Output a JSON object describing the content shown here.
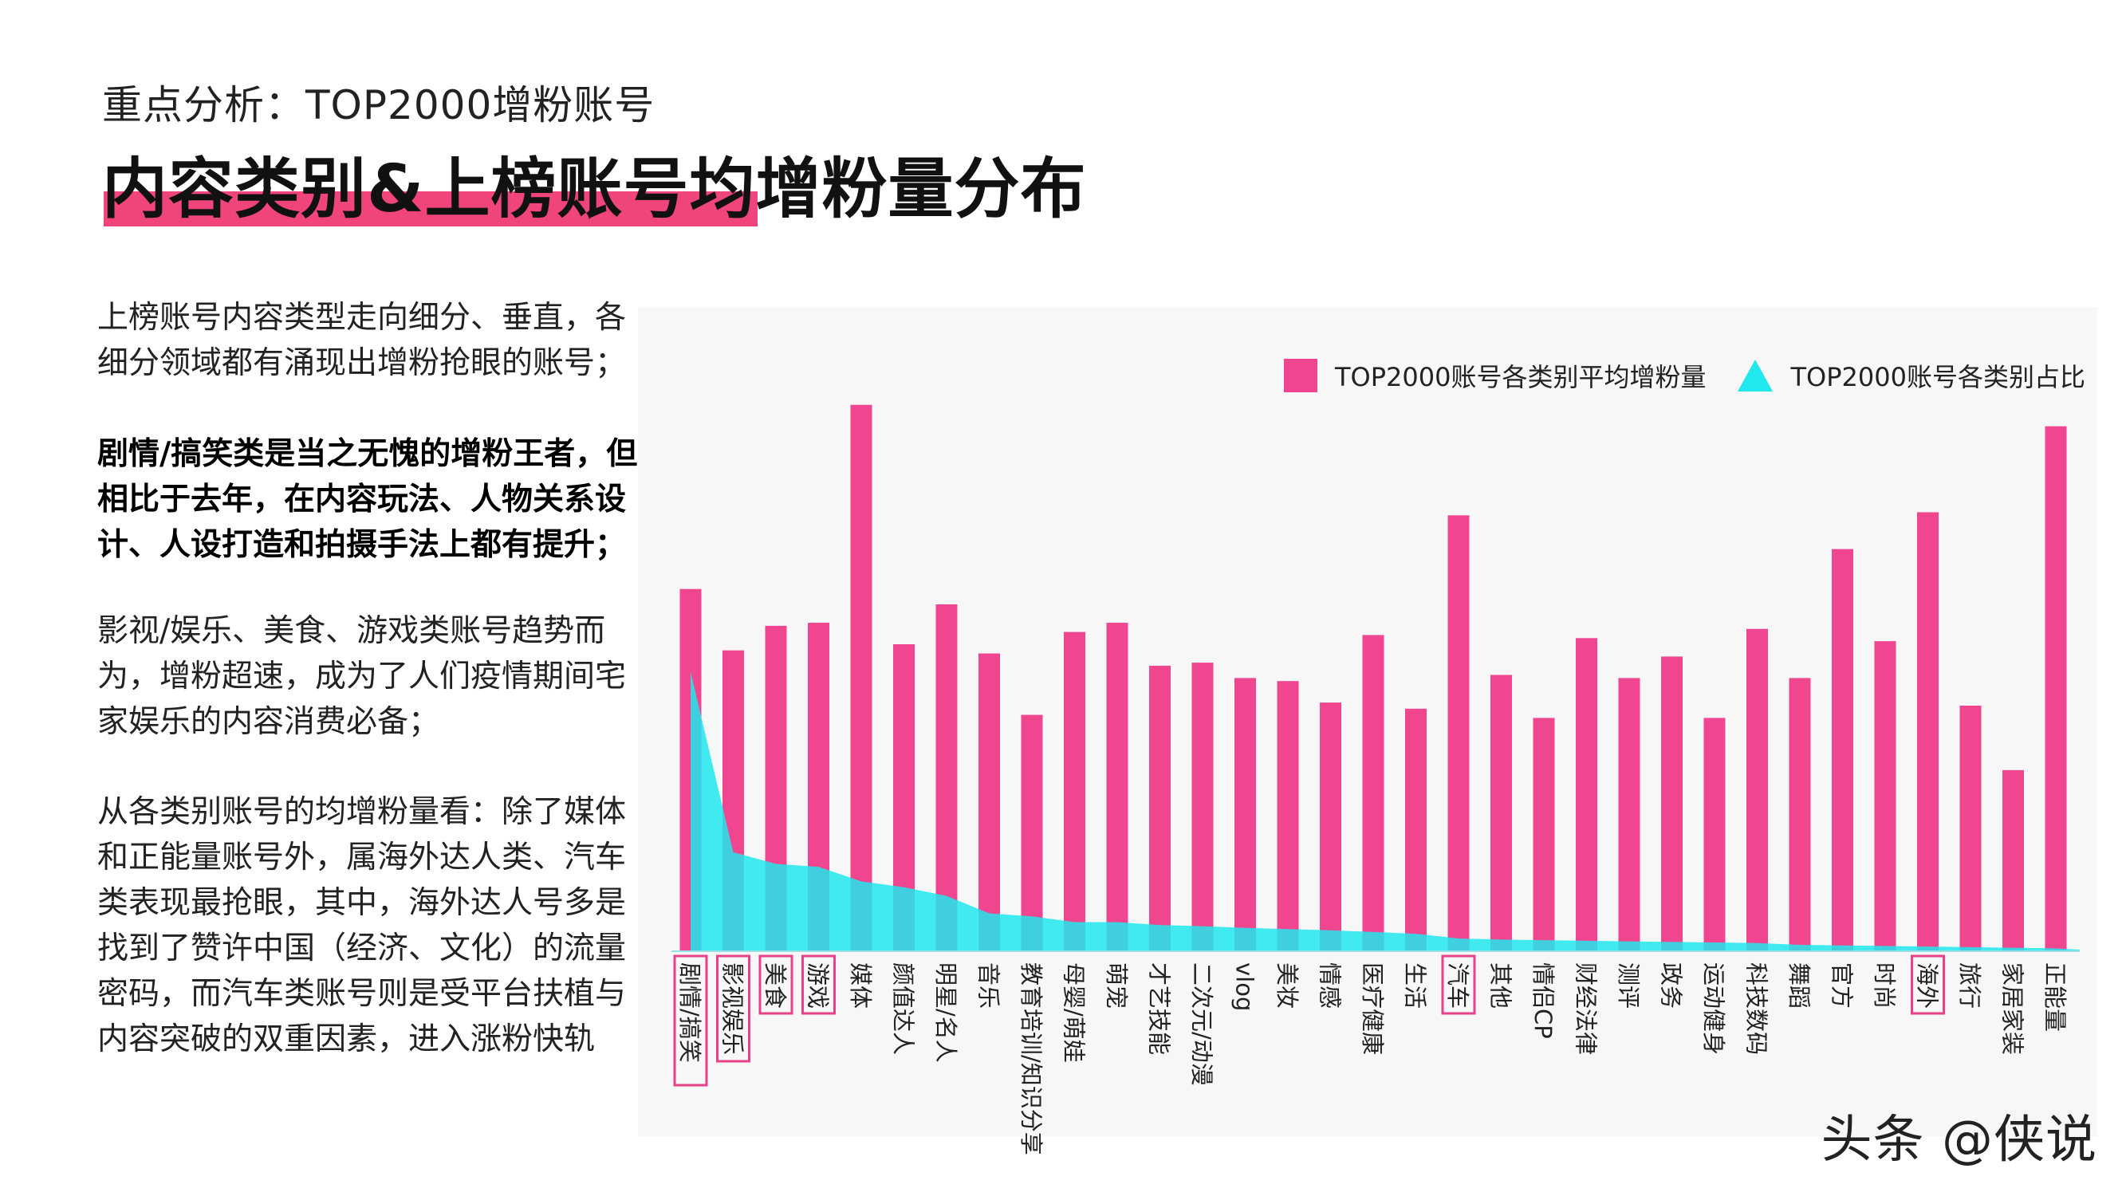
{
  "header": {
    "subtitle": "重点分析：TOP2000增粉账号",
    "title": "内容类别&上榜账号均增粉量分布"
  },
  "paragraphs": [
    "上榜账号内容类型走向细分、垂直，各细分领域都有涌现出增粉抢眼的账号；",
    "剧情/搞笑类是当之无愧的增粉王者，但相比于去年，在内容玩法、人物关系设计、人设打造和拍摄手法上都有提升；",
    "影视/娱乐、美食、游戏类账号趋势而为，增粉超速，成为了人们疫情期间宅家娱乐的内容消费必备；",
    "从各类别账号的均增粉量看：除了媒体和正能量账号外，属海外达人类、汽车类表现最抢眼，其中，海外达人号多是找到了赞许中国（经济、文化）的流量密码，而汽车类账号则是受平台扶植与内容突破的双重因素，进入涨粉快轨"
  ],
  "footer": {
    "logo_text": "头条 @侠说"
  },
  "colors": {
    "bar": "#f0458f",
    "area": "#20e8ec",
    "highlight_box": "#e8408a",
    "title_bar": "#f0457a"
  },
  "chart_data": {
    "type": "bar",
    "categories": [
      "剧情/搞笑",
      "影视娱乐",
      "美食",
      "游戏",
      "媒体",
      "颜值达人",
      "明星/名人",
      "音乐",
      "教育培训/知识分享",
      "母婴/萌娃",
      "萌宠",
      "才艺技能",
      "二次元/动漫",
      "vlog",
      "美妆",
      "情感",
      "医疗健康",
      "生活",
      "汽车",
      "其他",
      "情侣CP",
      "财经法律",
      "测评",
      "政务",
      "运动健身",
      "科技数码",
      "舞蹈",
      "官方",
      "时尚",
      "海外",
      "旅行",
      "家居家装",
      "正能量"
    ],
    "series": [
      {
        "name": "TOP2000账号各类别平均增粉量",
        "type": "bar",
        "values": [
          59,
          49,
          53,
          53.5,
          89,
          50,
          56.5,
          48.5,
          38.5,
          52,
          53.5,
          46.5,
          47,
          44.5,
          44,
          40.5,
          51.5,
          39.5,
          71,
          45,
          38,
          51,
          44.5,
          48,
          38,
          52.5,
          44.5,
          65.5,
          50.5,
          71.5,
          40,
          29.5,
          85.5
        ]
      },
      {
        "name": "TOP2000账号各类别占比",
        "type": "area",
        "values": [
          48,
          17,
          15,
          14.5,
          12,
          11,
          9.5,
          6.5,
          6,
          5,
          5,
          4.5,
          4.3,
          4,
          3.8,
          3.6,
          3.3,
          3,
          2.2,
          2,
          1.9,
          1.8,
          1.7,
          1.6,
          1.5,
          1.4,
          1.1,
          1,
          0.9,
          0.8,
          0.7,
          0.6,
          0.5
        ]
      }
    ],
    "highlighted_categories": [
      "剧情/搞笑",
      "影视娱乐",
      "美食",
      "游戏",
      "汽车",
      "海外"
    ],
    "legend_position": "top-right",
    "grid": false
  }
}
